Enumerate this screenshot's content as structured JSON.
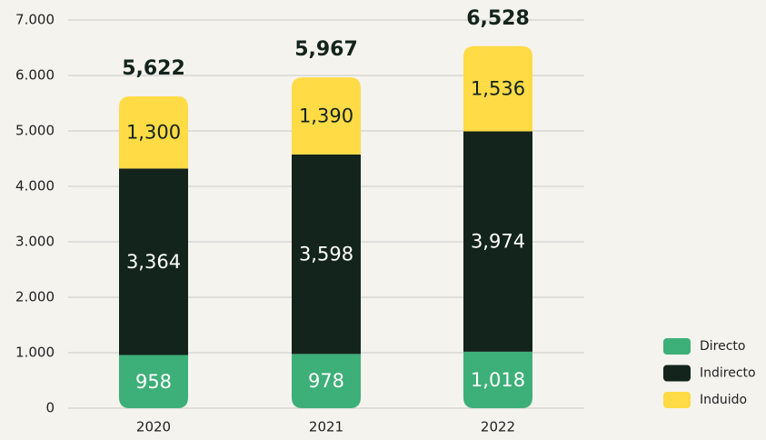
{
  "chart_data": {
    "type": "stacked_bar",
    "categories": [
      "2020",
      "2021",
      "2022"
    ],
    "series": [
      {
        "name": "Directo",
        "color": "#3daf78",
        "values": [
          958,
          978,
          1018
        ],
        "value_labels": [
          "958",
          "978",
          "1,018"
        ]
      },
      {
        "name": "Indirecto",
        "color": "#13241c",
        "values": [
          3364,
          3598,
          3974
        ],
        "value_labels": [
          "3,364",
          "3,598",
          "3,974"
        ]
      },
      {
        "name": "Induido",
        "color": "#ffdb45",
        "values": [
          1300,
          1390,
          1536
        ],
        "value_labels": [
          "1,300",
          "1,390",
          "1,536"
        ]
      }
    ],
    "totals": [
      5622,
      5967,
      6528
    ],
    "total_labels": [
      "5,622",
      "5,967",
      "6,528"
    ],
    "ylim": [
      0,
      7000
    ],
    "yticks": [
      0,
      {
        "value": 1000,
        "label": "1.000"
      },
      {
        "value": 2000,
        "label": "2.000"
      },
      {
        "value": 3000,
        "label": "3.000"
      },
      {
        "value": 4000,
        "label": "4.000"
      },
      {
        "value": 5000,
        "label": "5.000"
      },
      {
        "value": 6000,
        "label": "6.000"
      },
      {
        "value": 7000,
        "label": "7.000"
      }
    ],
    "grid": true,
    "legend": "lower right"
  }
}
